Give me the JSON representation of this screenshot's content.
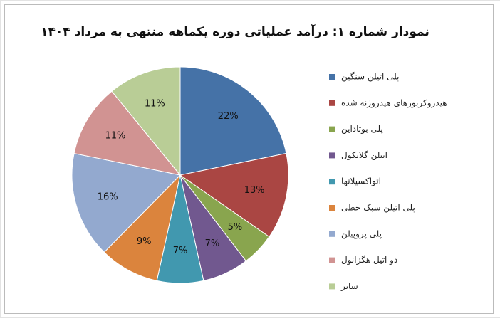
{
  "chart_data": {
    "type": "pie",
    "title": "نمودار شماره ۱: درآمد عملیاتی دوره یکماهه منتهی به مرداد ۱۴۰۴",
    "categories": [
      "پلی اتیلن سنگین",
      "هیدروکربورهای هیدروژنه شده",
      "پلی بوتاداین",
      "اتیلن گلایکول",
      "اتواکسیلاتها",
      "پلی اتیلن سبک خطی",
      "پلی پروپیلن",
      "دو اتیل هگزانول",
      "سایر"
    ],
    "values": [
      22,
      13,
      5,
      7,
      7,
      9,
      16,
      11,
      11
    ],
    "value_labels": [
      "22%",
      "13%",
      "5%",
      "7%",
      "7%",
      "9%",
      "16%",
      "11%",
      "11%"
    ],
    "colors": [
      "#4572a7",
      "#aa4643",
      "#89a54e",
      "#71588f",
      "#4198af",
      "#db843d",
      "#93a9cf",
      "#d19392",
      "#b9cd96"
    ],
    "legend": "right"
  }
}
